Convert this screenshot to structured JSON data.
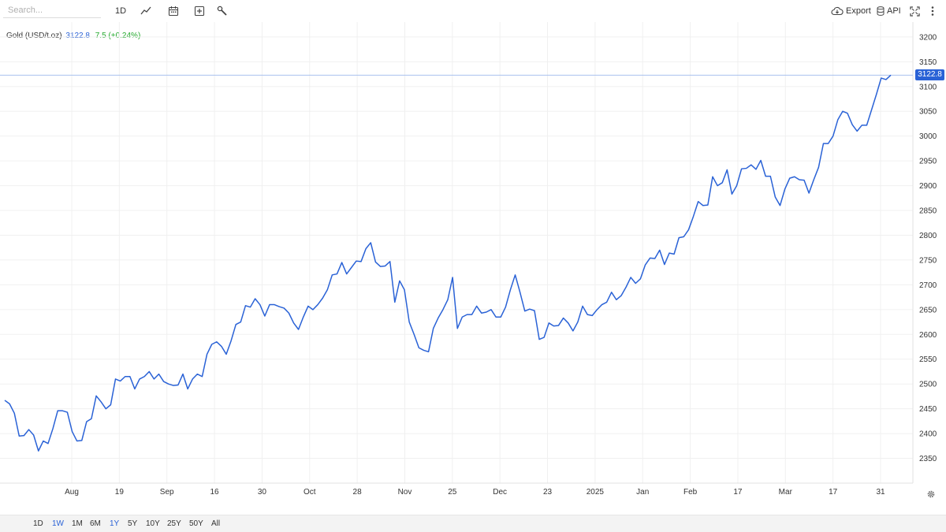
{
  "toolbar": {
    "search_placeholder": "Search...",
    "interval_label": "1D",
    "export_label": "Export",
    "api_label": "API"
  },
  "legend": {
    "symbol": "Gold (USD/t.oz)",
    "price": "3122.8",
    "change": "7.5 (+0.24%)"
  },
  "colors": {
    "line": "#2a62d6",
    "positive_change": "#22a92c",
    "grid": "#f0f0f0"
  },
  "range_buttons": {
    "timeframes": [
      {
        "label": "1D",
        "active": false
      },
      {
        "label": "1W",
        "active": true
      },
      {
        "label": "1M",
        "active": false
      },
      {
        "label": "6M",
        "active": false
      }
    ],
    "spans": [
      {
        "label": "1Y",
        "active": true
      },
      {
        "label": "5Y",
        "active": false
      },
      {
        "label": "10Y",
        "active": false
      },
      {
        "label": "25Y",
        "active": false
      },
      {
        "label": "50Y",
        "active": false
      },
      {
        "label": "All",
        "active": false
      }
    ]
  },
  "chart_data": {
    "type": "line",
    "title": "Gold (USD/t.oz)",
    "ylim": [
      2300,
      3230
    ],
    "y_ticks": [
      2350,
      2400,
      2450,
      2500,
      2550,
      2600,
      2650,
      2700,
      2750,
      2800,
      2850,
      2900,
      2950,
      3000,
      3050,
      3100,
      3150,
      3200
    ],
    "x_tick_labels": [
      "Aug",
      "19",
      "Sep",
      "16",
      "30",
      "Oct",
      "28",
      "Nov",
      "25",
      "Dec",
      "23",
      "2025",
      "Jan",
      "Feb",
      "17",
      "Mar",
      "17",
      "31"
    ],
    "last_price_label": "3122.8",
    "grid": true,
    "series": [
      {
        "values": [
          2467,
          2460,
          2441,
          2395,
          2396,
          2408,
          2397,
          2365,
          2385,
          2380,
          2410,
          2446,
          2446,
          2443,
          2404,
          2385,
          2386,
          2424,
          2430,
          2476,
          2464,
          2450,
          2458,
          2510,
          2506,
          2515,
          2515,
          2490,
          2510,
          2515,
          2525,
          2510,
          2520,
          2505,
          2500,
          2497,
          2498,
          2520,
          2490,
          2510,
          2520,
          2515,
          2560,
          2580,
          2585,
          2576,
          2560,
          2587,
          2620,
          2625,
          2658,
          2655,
          2672,
          2660,
          2637,
          2660,
          2660,
          2656,
          2653,
          2643,
          2623,
          2610,
          2635,
          2657,
          2650,
          2660,
          2673,
          2690,
          2720,
          2722,
          2745,
          2722,
          2735,
          2748,
          2747,
          2773,
          2785,
          2746,
          2737,
          2738,
          2747,
          2665,
          2708,
          2690,
          2625,
          2600,
          2573,
          2568,
          2565,
          2612,
          2633,
          2650,
          2670,
          2715,
          2612,
          2635,
          2640,
          2640,
          2657,
          2643,
          2645,
          2650,
          2635,
          2635,
          2655,
          2690,
          2720,
          2685,
          2647,
          2651,
          2648,
          2590,
          2594,
          2623,
          2617,
          2618,
          2633,
          2623,
          2607,
          2625,
          2657,
          2640,
          2638,
          2650,
          2660,
          2665,
          2685,
          2670,
          2678,
          2695,
          2715,
          2703,
          2712,
          2740,
          2754,
          2753,
          2770,
          2741,
          2764,
          2762,
          2795,
          2797,
          2811,
          2838,
          2868,
          2860,
          2861,
          2918,
          2900,
          2906,
          2932,
          2883,
          2900,
          2934,
          2935,
          2942,
          2933,
          2951,
          2919,
          2919,
          2877,
          2860,
          2893,
          2915,
          2918,
          2912,
          2911,
          2885,
          2912,
          2937,
          2985,
          2985,
          3000,
          3033,
          3050,
          3046,
          3023,
          3010,
          3022,
          3022,
          3053,
          3084,
          3117,
          3114,
          3123
        ]
      }
    ]
  }
}
